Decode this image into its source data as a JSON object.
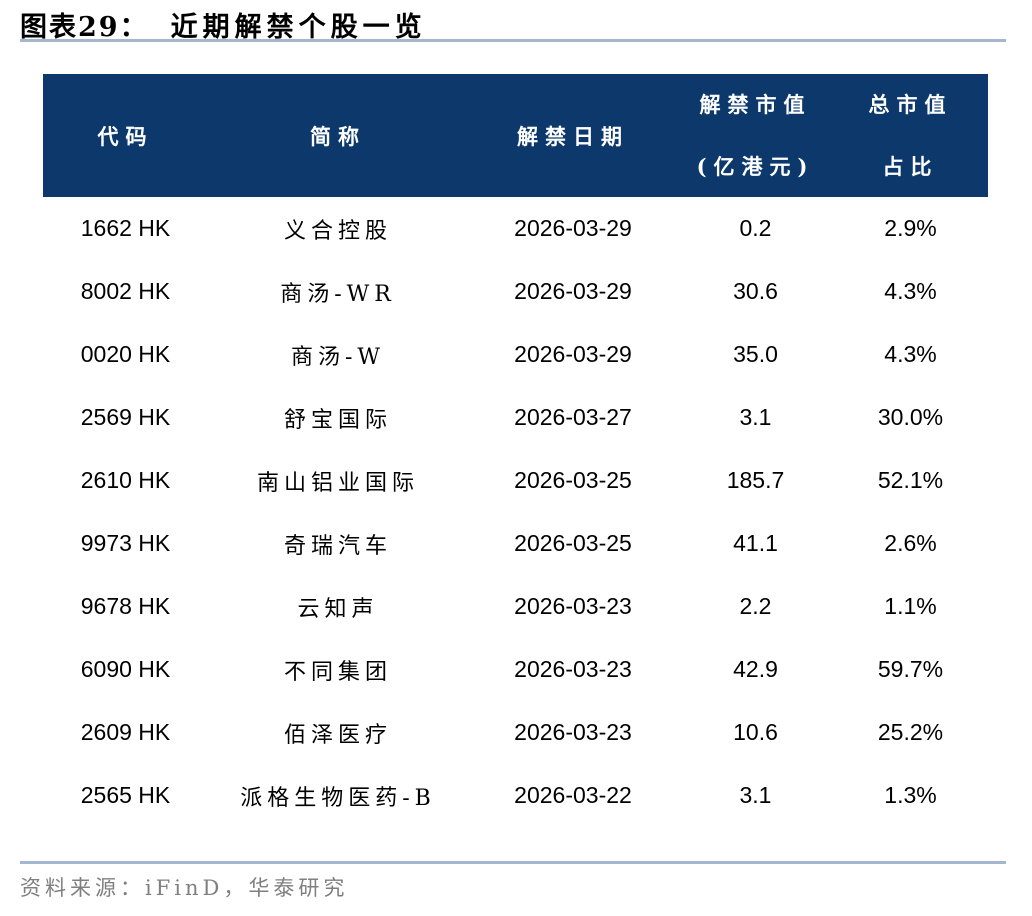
{
  "title": {
    "figure_label": "图表29：",
    "text": "近期解禁个股一览"
  },
  "table": {
    "columns": {
      "code": "代码",
      "name": "简称",
      "date": "解禁日期",
      "value_line1": "解禁市值",
      "value_line2": "(亿港元)",
      "pct_line1": "总市值",
      "pct_line2": "占比"
    },
    "rows": [
      {
        "code": "1662 HK",
        "name": "义合控股",
        "date": "2026-03-29",
        "value": "0.2",
        "pct": "2.9%"
      },
      {
        "code": "8002 HK",
        "name": "商汤-WR",
        "date": "2026-03-29",
        "value": "30.6",
        "pct": "4.3%"
      },
      {
        "code": "0020 HK",
        "name": "商汤-W",
        "date": "2026-03-29",
        "value": "35.0",
        "pct": "4.3%"
      },
      {
        "code": "2569 HK",
        "name": "舒宝国际",
        "date": "2026-03-27",
        "value": "3.1",
        "pct": "30.0%"
      },
      {
        "code": "2610 HK",
        "name": "南山铝业国际",
        "date": "2026-03-25",
        "value": "185.7",
        "pct": "52.1%"
      },
      {
        "code": "9973 HK",
        "name": "奇瑞汽车",
        "date": "2026-03-25",
        "value": "41.1",
        "pct": "2.6%"
      },
      {
        "code": "9678 HK",
        "name": "云知声",
        "date": "2026-03-23",
        "value": "2.2",
        "pct": "1.1%"
      },
      {
        "code": "6090 HK",
        "name": "不同集团",
        "date": "2026-03-23",
        "value": "42.9",
        "pct": "59.7%"
      },
      {
        "code": "2609 HK",
        "name": "佰泽医疗",
        "date": "2026-03-23",
        "value": "10.6",
        "pct": "25.2%"
      },
      {
        "code": "2565 HK",
        "name": "派格生物医药-B",
        "date": "2026-03-22",
        "value": "3.1",
        "pct": "1.3%"
      }
    ]
  },
  "footer": {
    "source_text": "资料来源：iFinD，华泰研究"
  },
  "colors": {
    "header_bg": "#0D386B",
    "header_text": "#FFFFFF",
    "divider": "#A3B8D0",
    "footer_text": "#7F7F7F",
    "body_text": "#000000"
  }
}
